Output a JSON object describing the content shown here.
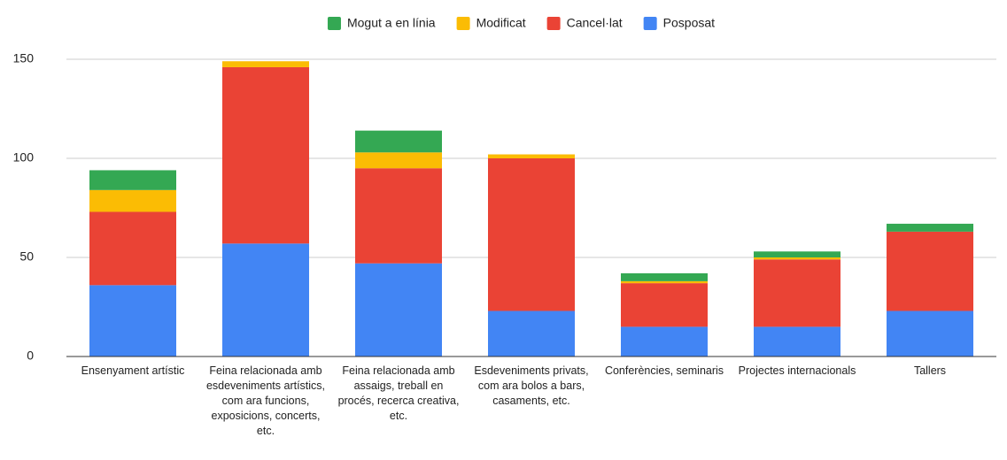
{
  "chart_data": {
    "type": "stacked_bar",
    "categories": [
      "Ensenyament artístic",
      "Feina relacionada amb esdeveniments artístics, com ara funcions, exposicions, concerts, etc.",
      "Feina relacionada amb assaigs, treball en procés, recerca creativa, etc.",
      "Esdeveniments privats, com ara bolos a bars, casaments, etc.",
      "Conferències, seminaris",
      "Projectes internacionals",
      "Tallers"
    ],
    "series": [
      {
        "name": "Mogut a en línia",
        "color": "#34a853",
        "values": [
          10,
          0,
          11,
          0,
          4,
          3,
          4
        ]
      },
      {
        "name": "Modificat",
        "color": "#fbbc04",
        "values": [
          11,
          3,
          8,
          2,
          1,
          1,
          0
        ]
      },
      {
        "name": "Cancel·lat",
        "color": "#ea4335",
        "values": [
          37,
          89,
          48,
          77,
          22,
          34,
          40
        ]
      },
      {
        "name": "Posposat",
        "color": "#4285f4",
        "values": [
          36,
          57,
          47,
          23,
          15,
          15,
          23
        ]
      }
    ],
    "ylim": [
      0,
      150
    ],
    "yticks": [
      0,
      50,
      100,
      150
    ],
    "grid": true,
    "legend": "top"
  }
}
